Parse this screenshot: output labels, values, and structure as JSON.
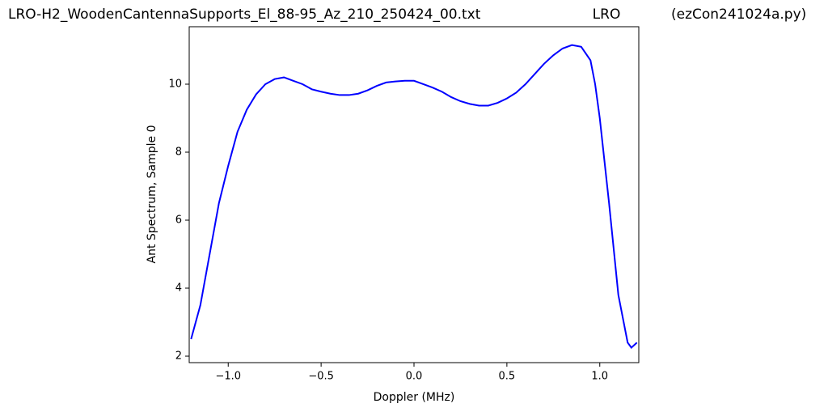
{
  "chart_data": {
    "type": "line",
    "title": "LRO-H2_WoodenCantennaSupports_El_88-95_Az_210_250424_00.txt",
    "subtitle": "LRO",
    "annotation": "(ezCon241024a.py)",
    "x_label": "Doppler (MHz)",
    "y_label": "Ant Spectrum, Sample 0",
    "color": "#0000ff",
    "x": [
      -1.2,
      -1.15,
      -1.1,
      -1.05,
      -1.0,
      -0.95,
      -0.9,
      -0.85,
      -0.8,
      -0.75,
      -0.7,
      -0.65,
      -0.6,
      -0.55,
      -0.5,
      -0.45,
      -0.4,
      -0.35,
      -0.3,
      -0.25,
      -0.2,
      -0.15,
      -0.1,
      -0.05,
      0.0,
      0.05,
      0.1,
      0.15,
      0.2,
      0.25,
      0.3,
      0.35,
      0.4,
      0.45,
      0.5,
      0.55,
      0.6,
      0.65,
      0.7,
      0.75,
      0.8,
      0.85,
      0.9,
      0.95,
      0.975,
      1.0,
      1.05,
      1.1,
      1.15,
      1.17,
      1.2
    ],
    "values": [
      2.5,
      3.5,
      5.0,
      6.5,
      7.6,
      8.6,
      9.25,
      9.7,
      10.0,
      10.15,
      10.2,
      10.1,
      10.0,
      9.85,
      9.78,
      9.72,
      9.68,
      9.68,
      9.72,
      9.82,
      9.95,
      10.05,
      10.08,
      10.1,
      10.1,
      10.0,
      9.9,
      9.78,
      9.62,
      9.5,
      9.42,
      9.37,
      9.37,
      9.45,
      9.58,
      9.75,
      10.0,
      10.3,
      10.6,
      10.85,
      11.05,
      11.15,
      11.1,
      10.7,
      10.0,
      9.0,
      6.5,
      3.8,
      2.4,
      2.25,
      2.4
    ],
    "xlim": [
      -1.21,
      1.21
    ],
    "ylim": [
      1.81,
      11.69
    ],
    "xticks": [
      {
        "value": -1.0,
        "label": "−1.0"
      },
      {
        "value": -0.5,
        "label": "−0.5"
      },
      {
        "value": 0.0,
        "label": "0.0"
      },
      {
        "value": 0.5,
        "label": "0.5"
      },
      {
        "value": 1.0,
        "label": "1.0"
      }
    ],
    "yticks": [
      2,
      4,
      6,
      8,
      10
    ],
    "grid": false
  }
}
